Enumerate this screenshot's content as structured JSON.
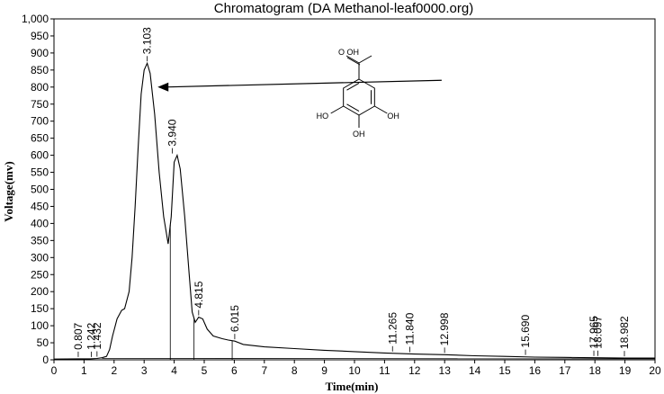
{
  "chart_data": {
    "type": "line",
    "title": "Chromatogram (DA Methanol-leaf0000.org)",
    "xlabel": "Time(min)",
    "ylabel": "Voltage(mv)",
    "xlim": [
      0,
      20
    ],
    "ylim": [
      0,
      1000
    ],
    "x_ticks": [
      "0",
      "1",
      "2",
      "3",
      "4",
      "5",
      "6",
      "7",
      "8",
      "9",
      "10",
      "11",
      "12",
      "13",
      "14",
      "15",
      "16",
      "17",
      "18",
      "19",
      "20"
    ],
    "y_ticks": [
      "0",
      "50",
      "100",
      "150",
      "200",
      "250",
      "300",
      "350",
      "400",
      "450",
      "500",
      "550",
      "600",
      "650",
      "700",
      "750",
      "800",
      "850",
      "900",
      "950",
      "1,000"
    ],
    "grid": false,
    "series": [
      {
        "x": [
          0,
          0.8,
          1.2,
          1.43,
          1.6,
          1.75,
          1.85,
          1.95,
          2.1,
          2.25,
          2.35,
          2.5,
          2.6,
          2.7,
          2.8,
          2.9,
          3.0,
          3.103,
          3.2,
          3.35,
          3.5,
          3.65,
          3.8,
          3.9,
          4.0,
          4.1,
          4.2,
          4.35,
          4.5,
          4.6,
          4.7,
          4.815,
          4.95,
          5.1,
          5.3,
          5.6,
          5.8,
          6.015,
          6.3,
          7.0,
          8.0,
          9.0,
          10.0,
          11.0,
          12.0,
          13.0,
          14.0,
          15.0,
          16.0,
          17.0,
          18.0,
          19.0,
          20.0
        ],
        "y": [
          2,
          3,
          3,
          4,
          6,
          10,
          30,
          70,
          120,
          145,
          150,
          200,
          300,
          450,
          620,
          780,
          850,
          870,
          840,
          720,
          550,
          420,
          340,
          420,
          580,
          600,
          560,
          420,
          250,
          140,
          110,
          125,
          120,
          90,
          70,
          62,
          58,
          55,
          45,
          38,
          33,
          28,
          24,
          20,
          17,
          15,
          12,
          10,
          8,
          7,
          6,
          5,
          5
        ]
      }
    ],
    "peaks": [
      {
        "time": 0.807,
        "label": "0.807",
        "y": 3
      },
      {
        "time": 1.242,
        "label": "1.242",
        "y": 3
      },
      {
        "time": 1.432,
        "label": "1.432",
        "y": 4
      },
      {
        "time": 3.103,
        "label": "3.103",
        "y": 870
      },
      {
        "time": 3.94,
        "label": "3.940",
        "y": 600
      },
      {
        "time": 4.815,
        "label": "4.815",
        "y": 125
      },
      {
        "time": 6.015,
        "label": "6.015",
        "y": 55
      },
      {
        "time": 11.265,
        "label": "11.265",
        "y": 19
      },
      {
        "time": 11.84,
        "label": "11.840",
        "y": 17
      },
      {
        "time": 12.998,
        "label": "12.998",
        "y": 15
      },
      {
        "time": 15.69,
        "label": "15.690",
        "y": 9
      },
      {
        "time": 17.965,
        "label": "17.965",
        "y": 6
      },
      {
        "time": 18.097,
        "label": "18.097",
        "y": 6
      },
      {
        "time": 18.982,
        "label": "18.982",
        "y": 5
      }
    ],
    "baseline_drops": [
      3.87,
      4.66,
      5.93
    ],
    "annotation": {
      "structure": "gallic-acid",
      "labels": {
        "cooh": "O  OH",
        "oh_left": "HO",
        "oh_right": "OH",
        "oh_bottom": "OH"
      },
      "arrow_from": [
        12.9,
        820
      ],
      "arrow_to": [
        3.45,
        800
      ]
    }
  }
}
